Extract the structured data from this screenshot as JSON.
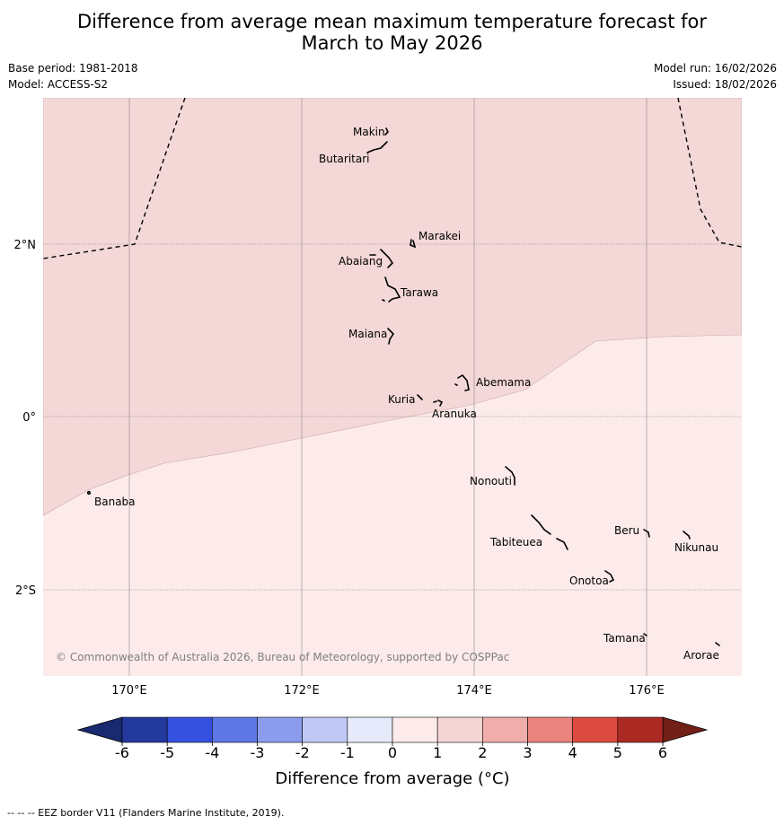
{
  "title_line1": "Difference from average mean maximum temperature forecast for",
  "title_line2": "March to May 2026",
  "base_period": "Base period: 1981-2018",
  "model": "Model: ACCESS-S2",
  "model_run": "Model run: 16/02/2026",
  "issued": "Issued: 18/02/2026",
  "copyright": "© Commonwealth of Australia 2026, Bureau of Meteorology, supported by COSPPac",
  "lat_labels": [
    "2°N",
    "0°",
    "2°S"
  ],
  "lon_labels": [
    "170°E",
    "172°E",
    "174°E",
    "176°E"
  ],
  "islands": [
    "Makin",
    "Butaritari",
    "Marakei",
    "Abaiang",
    "Tarawa",
    "Maiana",
    "Abemama",
    "Kuria",
    "Aranuka",
    "Banaba",
    "Nonouti",
    "Beru",
    "Tabiteuea",
    "Nikunau",
    "Onotoa",
    "Tamana",
    "Arorae"
  ],
  "colorbar": {
    "ticks": [
      "-6",
      "-5",
      "-4",
      "-3",
      "-2",
      "-1",
      "0",
      "1",
      "2",
      "3",
      "4",
      "5",
      "6"
    ],
    "colors": [
      "#24399e",
      "#3651e0",
      "#5e79e6",
      "#8b9cec",
      "#c0c9f4",
      "#e6eafb",
      "#fcebea",
      "#f4d5d5",
      "#efaeab",
      "#e8837d",
      "#dc4a40",
      "#ac2a24"
    ],
    "low_extend_color": "#1a2a70",
    "high_extend_color": "#721f17",
    "label": "Difference from average (°C)"
  },
  "map_colors": {
    "warm_1_2": "#f4d7d7",
    "warm_0_1": "#fcebea"
  },
  "footnote": "--  --  -- EEZ border V11 (Flanders Marine Institute, 2019)."
}
